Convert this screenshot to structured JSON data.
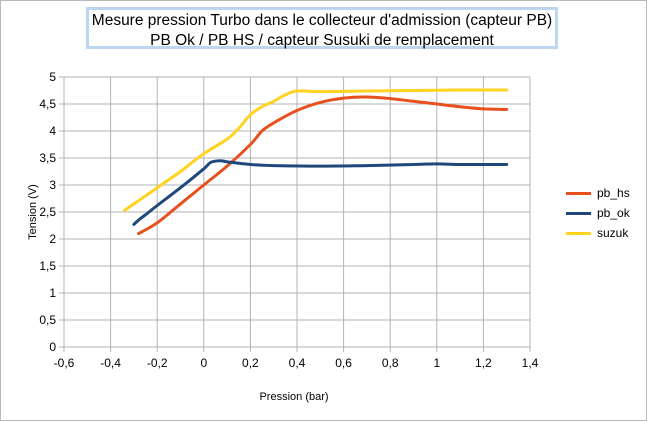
{
  "chart_data": {
    "type": "line",
    "title": "Mesure pression Turbo dans le collecteur d'admission (capteur PB)",
    "subtitle": "PB Ok / PB HS / capteur Susuki de remplacement",
    "xlabel": "Pression (bar)",
    "ylabel": "Tension (V)",
    "xlim": [
      -0.6,
      1.4
    ],
    "ylim": [
      0,
      5
    ],
    "x_ticks": [
      "-0,6",
      "-0,4",
      "-0,2",
      "0",
      "0,2",
      "0,4",
      "0,6",
      "0,8",
      "1",
      "1,2",
      "1,4"
    ],
    "y_ticks": [
      "0",
      "0,5",
      "1",
      "1,5",
      "2",
      "2,5",
      "3",
      "3,5",
      "4",
      "4,5",
      "5"
    ],
    "grid": true,
    "legend_position": "right",
    "series": [
      {
        "name": "pb_hs",
        "color": "#e8501e",
        "x": [
          -0.28,
          -0.2,
          -0.1,
          0.0,
          0.1,
          0.2,
          0.25,
          0.3,
          0.4,
          0.5,
          0.6,
          0.7,
          0.8,
          0.9,
          1.0,
          1.1,
          1.2,
          1.3
        ],
        "y": [
          2.1,
          2.3,
          2.65,
          3.0,
          3.35,
          3.75,
          4.0,
          4.15,
          4.38,
          4.53,
          4.61,
          4.63,
          4.6,
          4.55,
          4.5,
          4.45,
          4.41,
          4.4
        ]
      },
      {
        "name": "pb_ok",
        "color": "#1f497d",
        "x": [
          -0.3,
          -0.28,
          -0.25,
          -0.2,
          -0.1,
          0.0,
          0.03,
          0.07,
          0.1,
          0.2,
          0.3,
          0.5,
          0.7,
          0.9,
          1.0,
          1.1,
          1.2,
          1.3
        ],
        "y": [
          2.27,
          2.35,
          2.45,
          2.62,
          2.95,
          3.3,
          3.42,
          3.45,
          3.43,
          3.38,
          3.36,
          3.35,
          3.36,
          3.38,
          3.39,
          3.38,
          3.38,
          3.38
        ]
      },
      {
        "name": "suzuk",
        "color": "#ffd320",
        "x": [
          -0.34,
          -0.3,
          -0.25,
          -0.2,
          -0.1,
          0.0,
          0.1,
          0.15,
          0.2,
          0.25,
          0.3,
          0.35,
          0.4,
          0.5,
          0.7,
          0.9,
          1.1,
          1.3
        ],
        "y": [
          2.53,
          2.65,
          2.8,
          2.95,
          3.25,
          3.58,
          3.85,
          4.05,
          4.3,
          4.45,
          4.55,
          4.67,
          4.74,
          4.73,
          4.74,
          4.75,
          4.76,
          4.76
        ]
      }
    ]
  }
}
